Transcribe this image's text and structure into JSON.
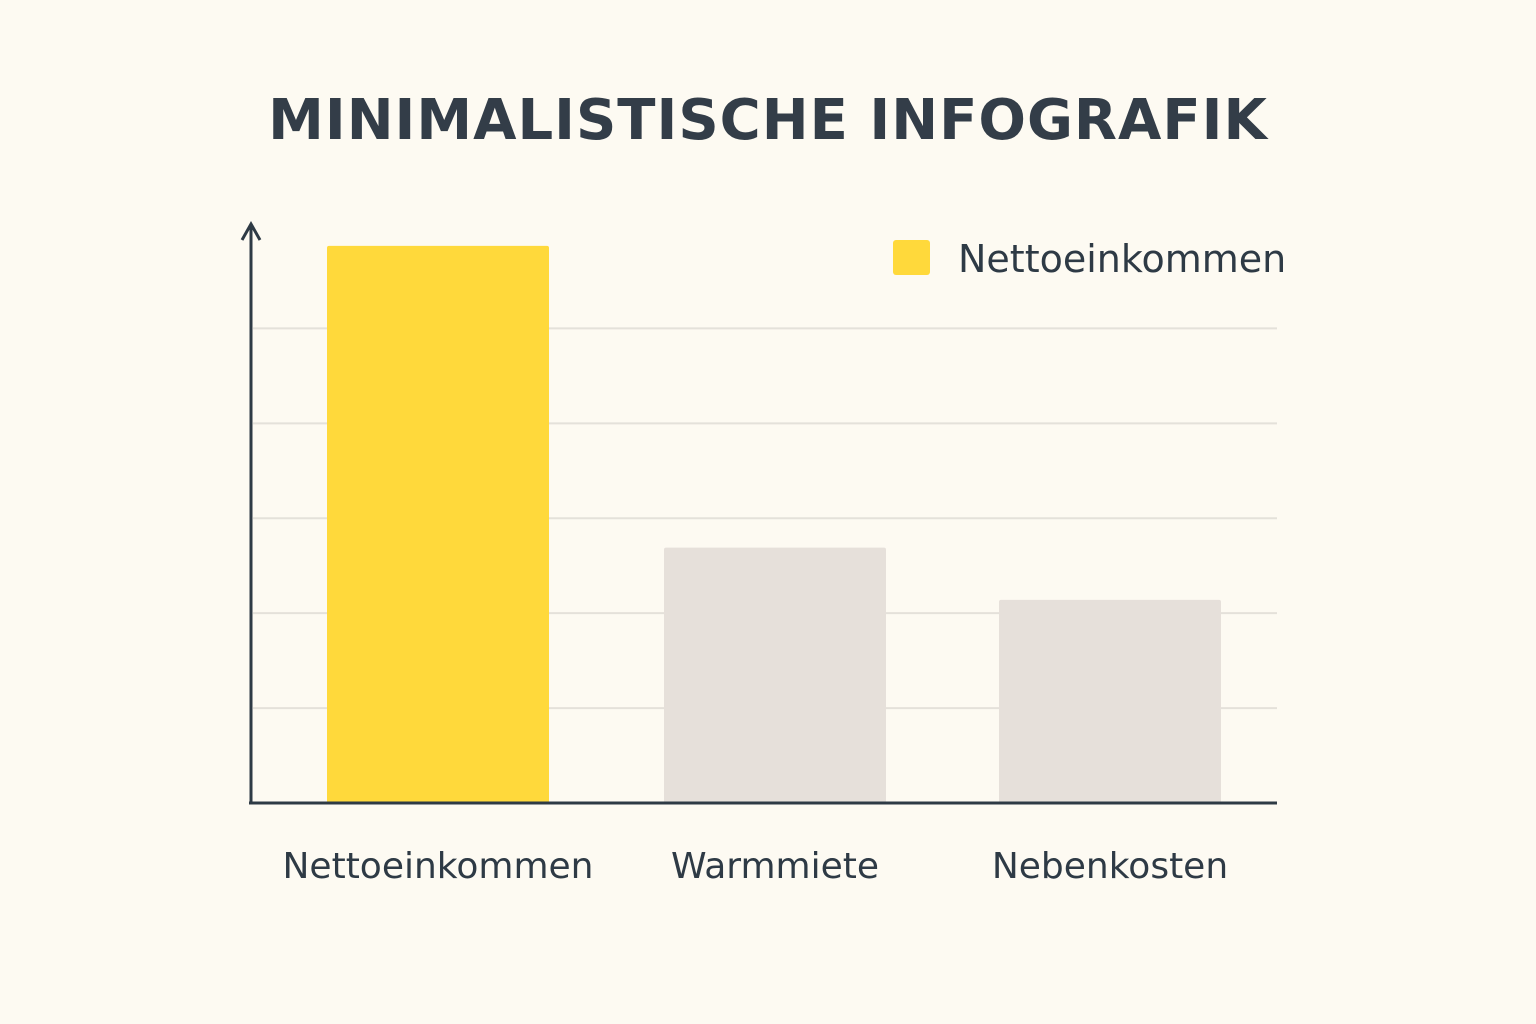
{
  "chart_data": {
    "type": "bar",
    "title": "MINIMALISTISCHE INFOGRAFIK",
    "categories": [
      "Nettoeinkommen",
      "Warmmiete",
      "Nebenkosten"
    ],
    "values": [
      5.87,
      2.69,
      2.14
    ],
    "colors": [
      "#ffd93b",
      "#e6e0da",
      "#e6e0da"
    ],
    "legend": [
      {
        "label": "Nettoeinkommen",
        "color": "#ffd93b"
      }
    ],
    "legend_position": "top-right",
    "xlabel": "",
    "ylabel": "",
    "ylim": [
      0,
      6.1
    ],
    "grid": true,
    "gridlines": [
      1,
      2,
      3,
      4,
      5
    ]
  }
}
